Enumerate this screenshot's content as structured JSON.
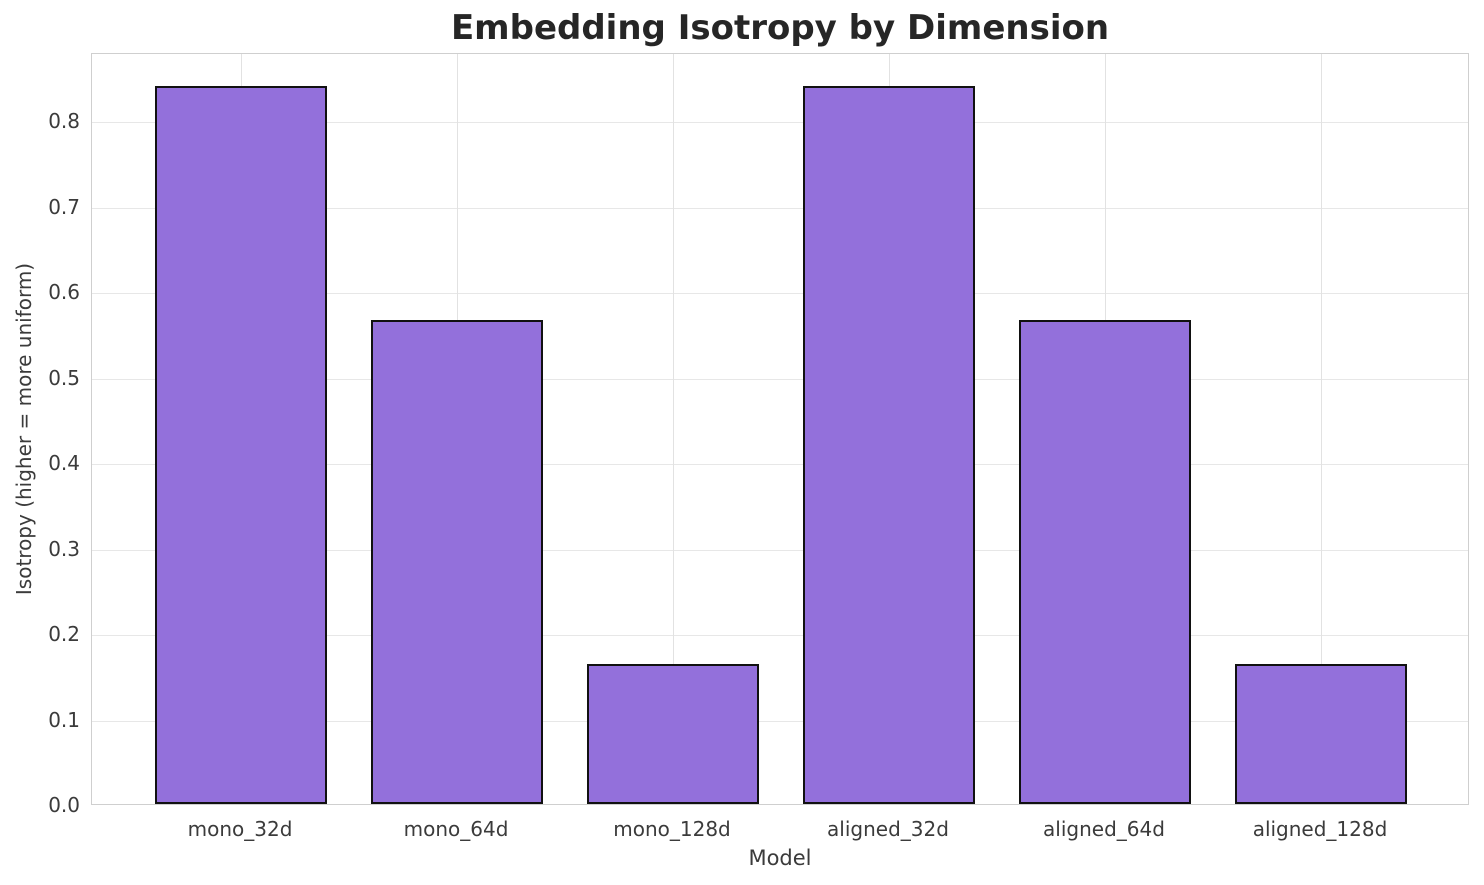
{
  "chart_data": {
    "type": "bar",
    "title": "Embedding Isotropy by Dimension",
    "xlabel": "Model",
    "ylabel": "Isotropy (higher = more uniform)",
    "categories": [
      "mono_32d",
      "mono_64d",
      "mono_128d",
      "aligned_32d",
      "aligned_64d",
      "aligned_128d"
    ],
    "values": [
      0.84,
      0.567,
      0.164,
      0.84,
      0.567,
      0.164
    ],
    "ylim": [
      0,
      0.88
    ],
    "yticks": [
      0.0,
      0.1,
      0.2,
      0.3,
      0.4,
      0.5,
      0.6,
      0.7,
      0.8
    ],
    "ytick_labels": [
      "0.0",
      "0.1",
      "0.2",
      "0.3",
      "0.4",
      "0.5",
      "0.6",
      "0.7",
      "0.8"
    ],
    "grid": "both",
    "legend": null,
    "bar_width_fraction": 0.8,
    "colors": {
      "bar_fill": "#9370DB",
      "bar_edge": "#111111",
      "grid_line": "#e7e7e7",
      "spine": "#cfcfcf",
      "title_text": "#262626",
      "tick_text": "#3b3b3b",
      "background": "#ffffff"
    }
  }
}
